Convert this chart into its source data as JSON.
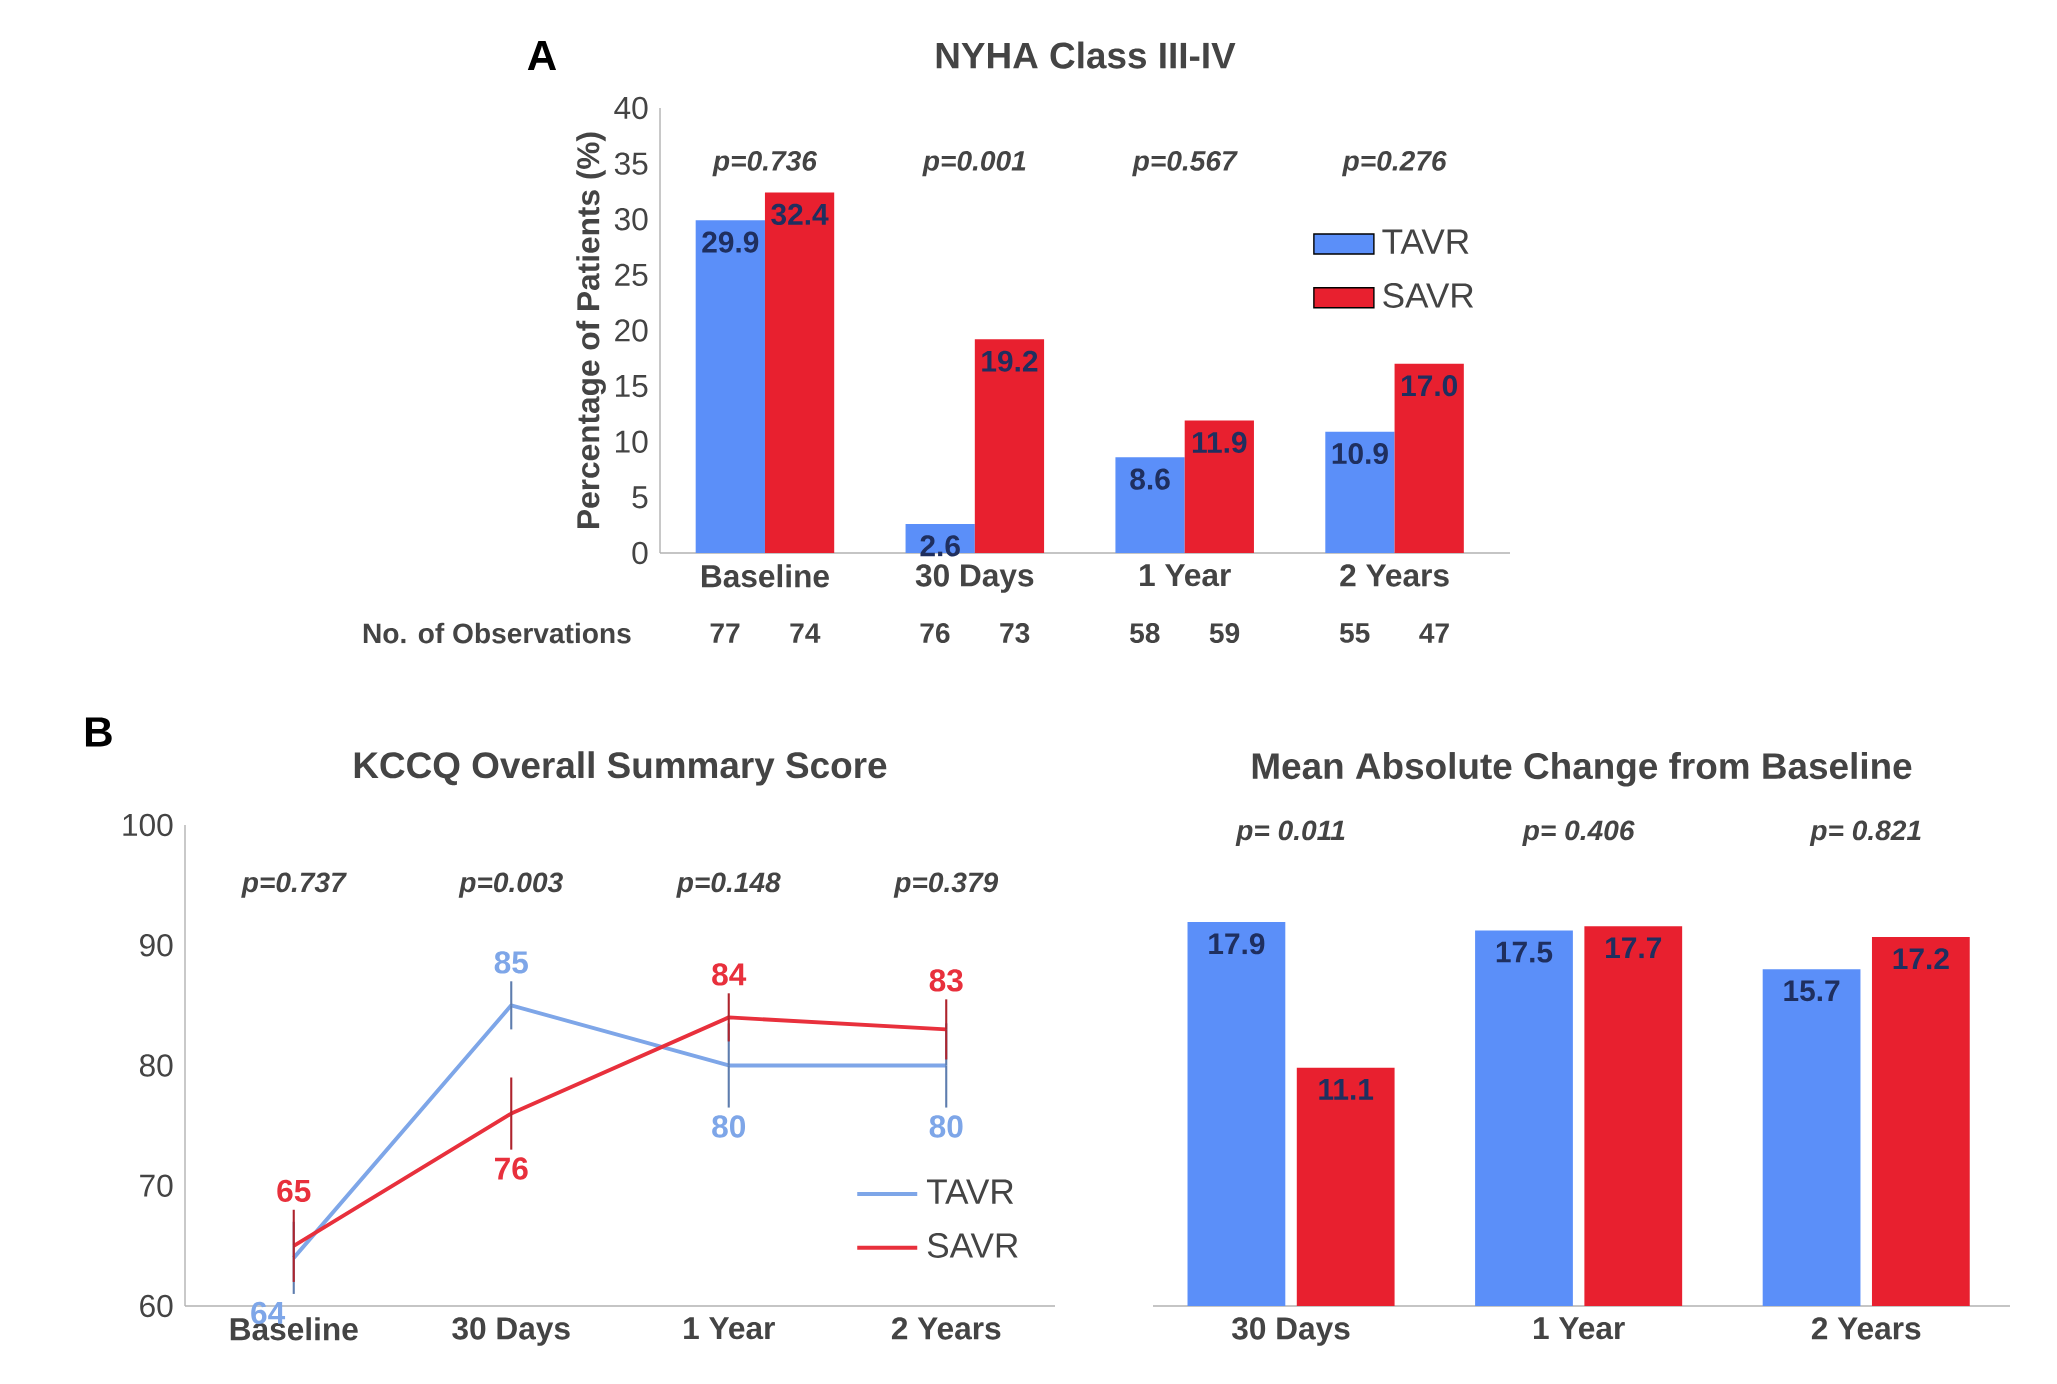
{
  "chart_data": [
    {
      "type": "bar",
      "title": "NYHA Class III-IV",
      "ylabel": "Percentage of Patients (%)",
      "categories": [
        "Baseline",
        "30 Days",
        "1 Year",
        "2 Years"
      ],
      "series": [
        {
          "name": "TAVR",
          "color": "#5b8ff9",
          "values": [
            29.9,
            2.6,
            8.6,
            10.9
          ],
          "value_labels": [
            "29.9",
            "2.6",
            "8.6",
            "10.9"
          ]
        },
        {
          "name": "SAVR",
          "color": "#e8202f",
          "values": [
            32.4,
            19.2,
            11.9,
            17.0
          ],
          "value_labels": [
            "32.4",
            "19.2",
            "11.9",
            "17.0"
          ]
        }
      ],
      "ylim": [
        0,
        40
      ],
      "yticks": [
        0,
        5,
        10,
        15,
        20,
        25,
        30,
        35,
        40
      ],
      "legend": "top right",
      "annotations": [
        "A",
        "No. of Observations",
        "p=0.736",
        "p=0.001",
        "p=0.567",
        "p=0.276",
        "77",
        "74",
        "76",
        "73",
        "58",
        "59",
        "55",
        "47"
      ]
    },
    {
      "type": "line",
      "title": "KCCQ Overall Summary Score",
      "categories": [
        "Baseline",
        "30 Days",
        "1 Year",
        "2 Years"
      ],
      "series": [
        {
          "name": "TAVR",
          "color": "#7ea6e8",
          "values": [
            64,
            85,
            80,
            80
          ],
          "errors": [
            3,
            2,
            3.5,
            3.5
          ]
        },
        {
          "name": "SAVR",
          "color": "#e8303c",
          "values": [
            65,
            76,
            84,
            83
          ],
          "errors": [
            3,
            3,
            2,
            2.5
          ]
        }
      ],
      "ylim": [
        60,
        100
      ],
      "yticks": [
        60,
        70,
        80,
        90,
        100
      ],
      "data_labels": true,
      "legend": "bottom right",
      "marker": "none",
      "line_style": "solid",
      "annotations": [
        "B",
        "p=0.737",
        "p=0.003",
        "p=0.148",
        "p=0.379"
      ]
    },
    {
      "type": "bar",
      "title": "Mean Absolute Change from Baseline",
      "categories": [
        "30 Days",
        "1 Year",
        "2 Years"
      ],
      "series": [
        {
          "color": "#5b8ff9",
          "values": [
            17.9,
            17.5,
            15.7
          ]
        },
        {
          "color": "#e8202f",
          "values": [
            11.1,
            17.7,
            17.2
          ]
        }
      ],
      "data_labels": true,
      "tick_labels": "x",
      "annotations": [
        "p= 0.011",
        "p= 0.406",
        "p= 0.821"
      ]
    }
  ]
}
